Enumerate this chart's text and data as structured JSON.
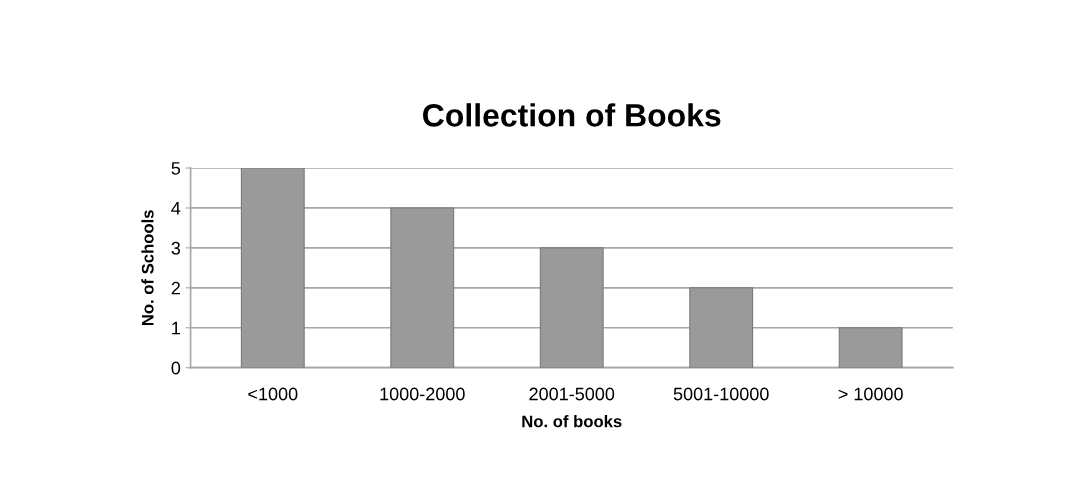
{
  "chart_data": {
    "type": "bar",
    "title": "Collection of Books",
    "xlabel": "No. of books",
    "ylabel": "No. of Schools",
    "categories": [
      "<1000",
      "1000-2000",
      "2001-5000",
      "5001-10000",
      "> 10000"
    ],
    "values": [
      5,
      4,
      3,
      2,
      1
    ],
    "color": "#9a9a9a",
    "ylim": [
      0,
      5
    ],
    "yticks": [
      0,
      1,
      2,
      3,
      4,
      5
    ],
    "grid": "y",
    "legend": false
  }
}
